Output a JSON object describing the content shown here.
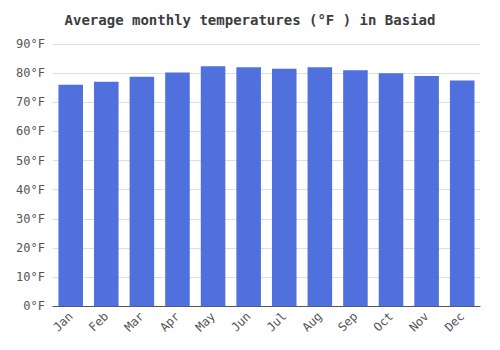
{
  "chart_data": {
    "type": "bar",
    "title": "Average monthly temperatures (°F ) in Basiad",
    "categories": [
      "Jan",
      "Feb",
      "Mar",
      "Apr",
      "May",
      "Jun",
      "Jul",
      "Aug",
      "Sep",
      "Oct",
      "Nov",
      "Dec"
    ],
    "values": [
      76.0,
      77.0,
      78.8,
      80.2,
      82.4,
      82.0,
      81.5,
      82.0,
      81.0,
      80.0,
      79.0,
      77.5
    ],
    "ylim": [
      0,
      90
    ],
    "yticks": [
      {
        "value": 0,
        "label": "0°F"
      },
      {
        "value": 10,
        "label": "10°F"
      },
      {
        "value": 20,
        "label": "20°F"
      },
      {
        "value": 30,
        "label": "30°F"
      },
      {
        "value": 40,
        "label": "40°F"
      },
      {
        "value": 50,
        "label": "50°F"
      },
      {
        "value": 60,
        "label": "60°F"
      },
      {
        "value": 70,
        "label": "70°F"
      },
      {
        "value": 80,
        "label": "80°F"
      },
      {
        "value": 90,
        "label": "90°F"
      }
    ],
    "grid": true
  }
}
